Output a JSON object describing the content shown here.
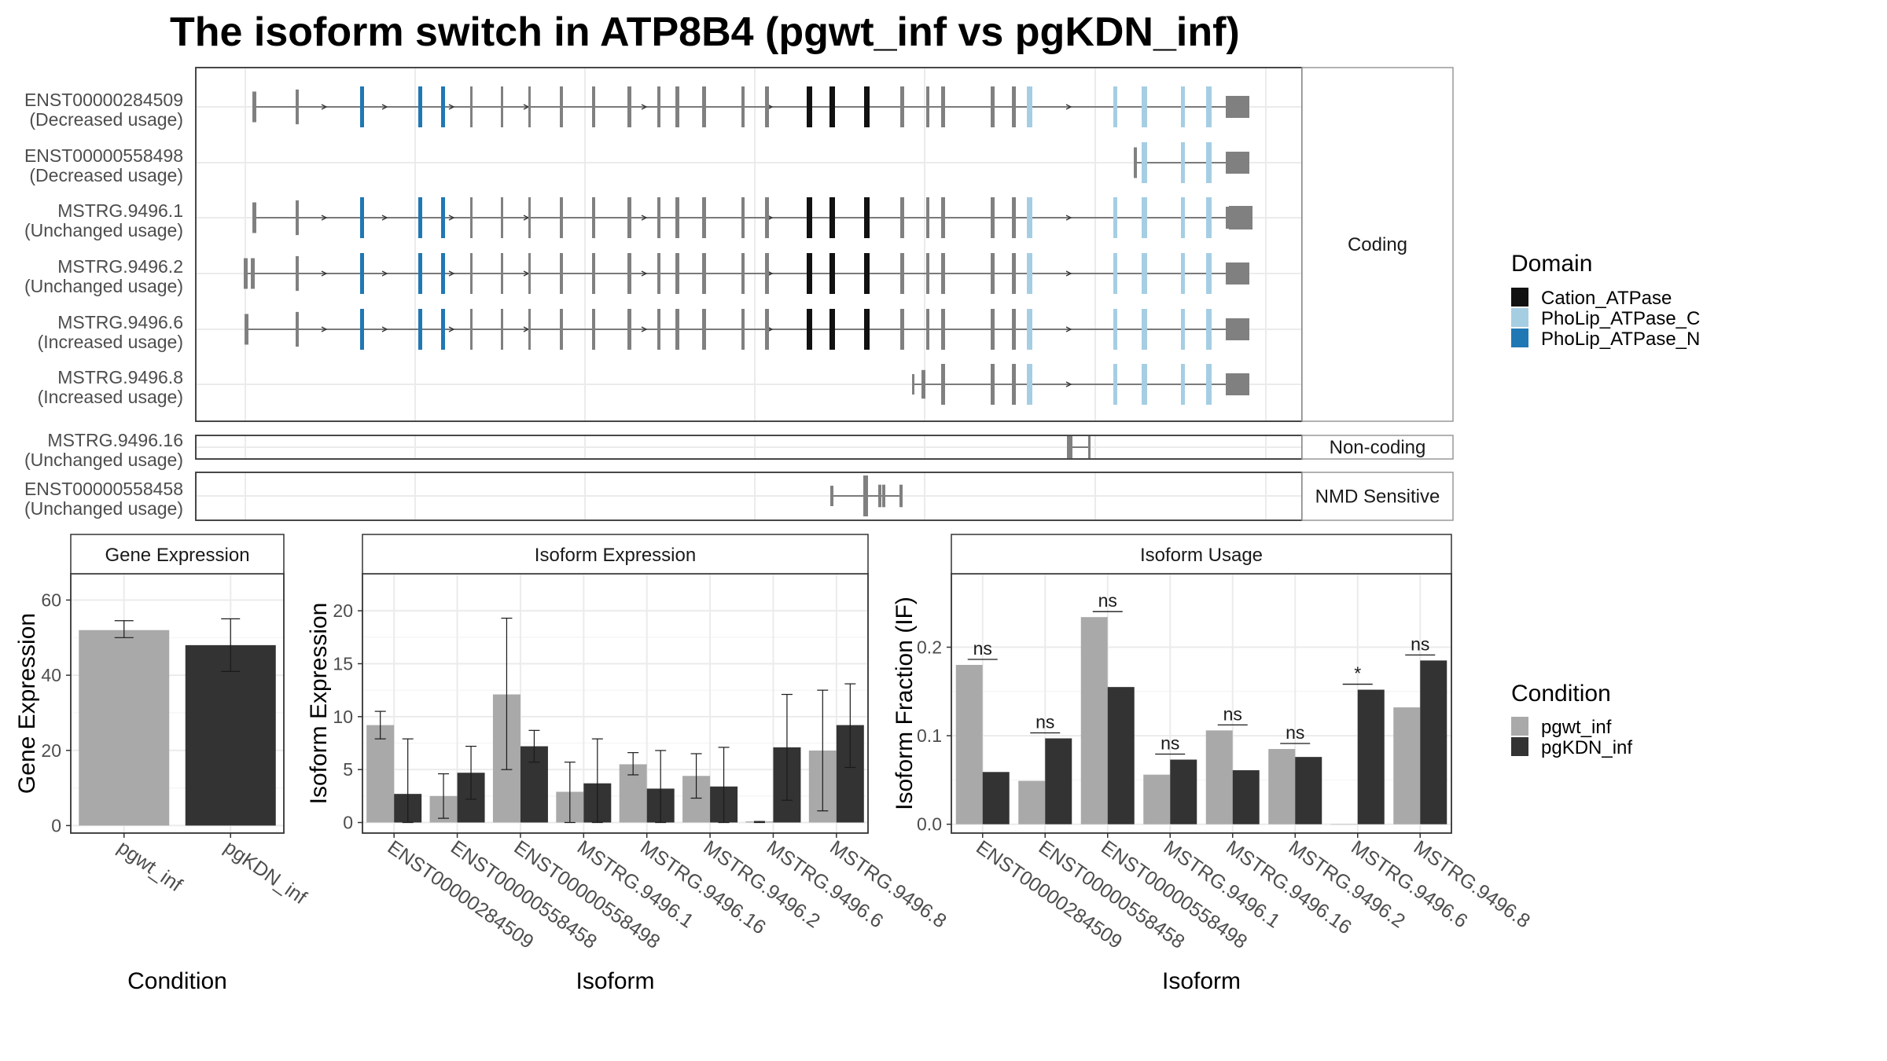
{
  "title": "The isoform switch in ATP8B4 (pgwt_inf vs pgKDN_inf)",
  "colors": {
    "Cation_ATPase": "#111111",
    "PhoLip_ATPase_C": "#a6cee3",
    "PhoLip_ATPase_N": "#1f78b4",
    "exon": "#808080",
    "pgwt_inf": "#a9a9a9",
    "pgKDN_inf": "#333333",
    "grid": "#ebebeb",
    "border": "#333333",
    "strip_bg": "#ffffff"
  },
  "domain_legend": {
    "title": "Domain",
    "items": [
      {
        "label": "Cation_ATPase",
        "color": "#111111"
      },
      {
        "label": "PhoLip_ATPase_C",
        "color": "#a6cee3"
      },
      {
        "label": "PhoLip_ATPase_N",
        "color": "#1f78b4"
      }
    ]
  },
  "condition_legend": {
    "title": "Condition",
    "items": [
      {
        "label": "pgwt_inf",
        "color": "#a9a9a9"
      },
      {
        "label": "pgKDN_inf",
        "color": "#333333"
      }
    ]
  },
  "transcripts": {
    "groups": [
      {
        "label": "Coding",
        "rows": [
          {
            "name": "ENST00000284509",
            "usage": "(Decreased usage)"
          },
          {
            "name": "ENST00000558498",
            "usage": "(Decreased usage)"
          },
          {
            "name": "MSTRG.9496.1",
            "usage": "(Unchanged usage)"
          },
          {
            "name": "MSTRG.9496.2",
            "usage": "(Unchanged usage)"
          },
          {
            "name": "MSTRG.9496.6",
            "usage": "(Increased usage)"
          },
          {
            "name": "MSTRG.9496.8",
            "usage": "(Increased usage)"
          }
        ]
      },
      {
        "label": "Non-coding",
        "rows": [
          {
            "name": "MSTRG.9496.16",
            "usage": "(Unchanged usage)"
          }
        ]
      },
      {
        "label": "NMD Sensitive",
        "rows": [
          {
            "name": "ENST00000558458",
            "usage": "(Unchanged usage)"
          }
        ]
      }
    ]
  },
  "chart_data": [
    {
      "type": "bar",
      "panel": "Gene Expression",
      "categories": [
        "pgwt_inf",
        "pgKDN_inf"
      ],
      "series": [
        {
          "values": [
            52,
            48
          ],
          "err_low": [
            50,
            41
          ],
          "err_high": [
            54.5,
            55
          ]
        }
      ],
      "xlabel": "Condition",
      "ylabel": "Gene Expression",
      "ylim": [
        -2,
        67
      ],
      "yticks": [
        0,
        20,
        40,
        60
      ],
      "yticklabels": [
        "0",
        "20",
        "40",
        "60"
      ]
    },
    {
      "type": "bar",
      "panel": "Isoform Expression",
      "categories": [
        "ENST00000284509",
        "ENST00000558458",
        "ENST00000558498",
        "MSTRG.9496.1",
        "MSTRG.9496.16",
        "MSTRG.9496.2",
        "MSTRG.9496.6",
        "MSTRG.9496.8"
      ],
      "series": [
        {
          "name": "pgwt_inf",
          "values": [
            9.2,
            2.5,
            12.1,
            2.9,
            5.5,
            4.4,
            0.1,
            6.8
          ],
          "err_low": [
            7.9,
            0.4,
            5.0,
            0.0,
            4.5,
            2.3,
            0.0,
            1.1
          ],
          "err_high": [
            10.5,
            4.6,
            19.3,
            5.7,
            6.6,
            6.5,
            0.1,
            12.5
          ]
        },
        {
          "name": "pgKDN_inf",
          "values": [
            2.7,
            4.7,
            7.2,
            3.7,
            3.2,
            3.4,
            7.1,
            9.2
          ],
          "err_low": [
            0.0,
            2.2,
            5.7,
            0.0,
            0.0,
            0.0,
            2.1,
            5.2
          ],
          "err_high": [
            7.9,
            7.2,
            8.7,
            7.9,
            6.8,
            7.1,
            12.1,
            13.1
          ]
        }
      ],
      "xlabel": "Isoform",
      "ylabel": "Isoform Expression",
      "ylim": [
        -1,
        23.5
      ],
      "yticks": [
        0,
        5,
        10,
        15,
        20
      ],
      "yticklabels": [
        "0",
        "5",
        "10",
        "15",
        "20"
      ]
    },
    {
      "type": "bar",
      "panel": "Isoform Usage",
      "categories": [
        "ENST00000284509",
        "ENST00000558458",
        "ENST00000558498",
        "MSTRG.9496.1",
        "MSTRG.9496.16",
        "MSTRG.9496.2",
        "MSTRG.9496.6",
        "MSTRG.9496.8"
      ],
      "series": [
        {
          "name": "pgwt_inf",
          "values": [
            0.18,
            0.049,
            0.234,
            0.056,
            0.106,
            0.085,
            0.0,
            0.132
          ]
        },
        {
          "name": "pgKDN_inf",
          "values": [
            0.059,
            0.097,
            0.155,
            0.073,
            0.061,
            0.076,
            0.152,
            0.185
          ]
        }
      ],
      "significance": [
        "ns",
        "ns",
        "ns",
        "ns",
        "ns",
        "ns",
        "*",
        "ns"
      ],
      "xlabel": "Isoform",
      "ylabel": "Isoform Fraction (IF)",
      "ylim": [
        -0.01,
        0.283
      ],
      "yticks": [
        0,
        0.1,
        0.2
      ],
      "yticklabels": [
        "0.0",
        "0.1",
        "0.2"
      ]
    }
  ]
}
